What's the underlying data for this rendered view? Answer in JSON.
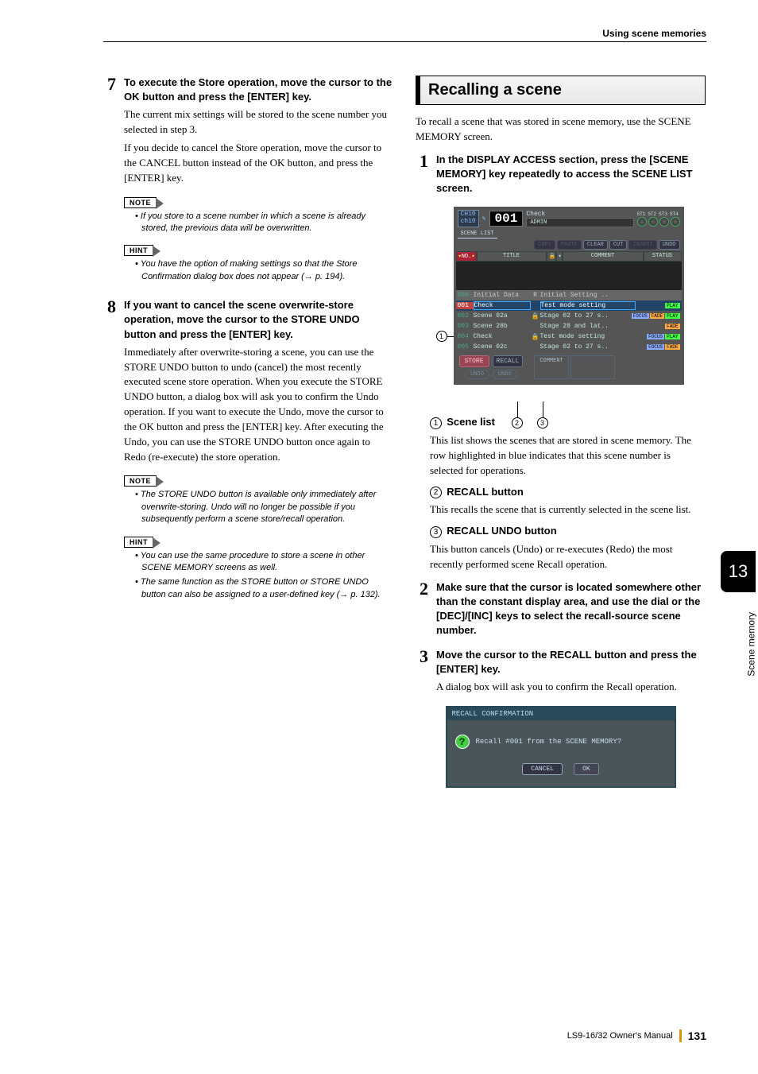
{
  "header": {
    "section": "Using scene memories"
  },
  "left": {
    "step7": {
      "num": "7",
      "title": "To execute the Store operation, move the cursor to the OK button and press the [ENTER] key.",
      "p1": "The current mix settings will be stored to the scene number you selected in step 3.",
      "p2": "If you decide to cancel the Store operation, move the cursor to the CANCEL button instead of the OK button, and press the [ENTER] key.",
      "note_tag": "NOTE",
      "note1": "If you store to a scene number in which a scene is already stored, the previous data will be overwritten.",
      "hint_tag": "HINT",
      "hint1": "You have the option of making settings so that the Store Confirmation dialog box does not appear (→ p. 194)."
    },
    "step8": {
      "num": "8",
      "title": "If you want to cancel the scene overwrite-store operation, move the cursor to the STORE UNDO button and press the [ENTER] key.",
      "p1": "Immediately after overwrite-storing a scene, you can use the STORE UNDO button to undo (cancel) the most recently executed scene store operation. When you execute the STORE UNDO button, a dialog box will ask you to confirm the Undo operation. If you want to execute the Undo, move the cursor to the OK button and press the [ENTER] key. After executing the Undo, you can use the STORE UNDO button once again to Redo (re-execute) the store operation.",
      "note_tag": "NOTE",
      "note1": "The STORE UNDO button is available only immediately after overwrite-storing. Undo will no longer be possible if you subsequently perform a scene store/recall operation.",
      "hint_tag": "HINT",
      "hint1": "You can use the same procedure to store a scene in other SCENE MEMORY screens as well.",
      "hint2": "The same function as the STORE button or STORE UNDO button can also be assigned to a user-defined key (→ p. 132)."
    }
  },
  "right": {
    "title": "Recalling a scene",
    "intro": "To recall a scene that was stored in scene memory, use the SCENE MEMORY screen.",
    "step1": {
      "num": "1",
      "title": "In the DISPLAY ACCESS section, press the [SCENE MEMORY] key repeatedly to access the SCENE LIST screen."
    },
    "scr": {
      "ch": "CH10",
      "chn": "ch10",
      "n": "001",
      "check": "Check",
      "admin": "ADMIN",
      "st": [
        "ST1",
        "ST2",
        "ST3",
        "ST4"
      ],
      "tab": "SCENE LIST",
      "btns": {
        "copy": "COPY",
        "paste": "PASTE",
        "clear": "CLEAR",
        "cut": "CUT",
        "insert": "INSERT",
        "undo": "UNDO"
      },
      "hdr": {
        "no": "NO.",
        "title": "TITLE",
        "cmt": "COMMENT",
        "status": "STATUS"
      },
      "rows": [
        {
          "n": "000",
          "t": "Initial Data",
          "l": "R",
          "c": "Initial Setting ..",
          "s": []
        },
        {
          "n": "001",
          "t": "Check",
          "l": "",
          "c": "Test mode setting",
          "s": [
            "PLAY"
          ],
          "sel": true
        },
        {
          "n": "002",
          "t": "Scene 02a",
          "l": "🔒",
          "c": "Stage 02 to 27 s..",
          "s": [
            "FOCUS",
            "FADE",
            "PLAY"
          ]
        },
        {
          "n": "003",
          "t": "Scene 28b",
          "l": "",
          "c": "Stage 28 and lat..",
          "s": [
            "FADE"
          ]
        },
        {
          "n": "004",
          "t": "Check",
          "l": "🔒",
          "c": "Test mode setting",
          "s": [
            "FOCUS",
            "PLAY"
          ]
        },
        {
          "n": "005",
          "t": "Scene 02c",
          "l": "",
          "c": "Stage 02 to 27 s..",
          "s": [
            "FOCUS",
            "FADE"
          ]
        }
      ],
      "store": "STORE",
      "recall": "RECALL",
      "undo2": "UNDO",
      "tb": {
        "comment": "COMMENT",
        "ts": "TIME STAMP"
      }
    },
    "item1": {
      "c": "1",
      "title": "Scene list",
      "body": "This list shows the scenes that are stored in scene memory. The row highlighted in blue indicates that this scene number is selected for operations."
    },
    "item2": {
      "c": "2",
      "title": "RECALL button",
      "body": "This recalls the scene that is currently selected in the scene list."
    },
    "item3": {
      "c": "3",
      "title": "RECALL UNDO button",
      "body": "This button cancels (Undo) or re-executes (Redo) the most recently performed scene Recall operation."
    },
    "step2": {
      "num": "2",
      "title": "Make sure that the cursor is located somewhere other than the constant display area, and use the dial or the [DEC]/[INC] keys to select the recall-source scene number."
    },
    "step3": {
      "num": "3",
      "title": "Move the cursor to the RECALL button and press the [ENTER] key.",
      "body": "A dialog box will ask you to confirm the Recall operation."
    },
    "dialog": {
      "title": "RECALL CONFIRMATION",
      "msg": "Recall #001 from the SCENE MEMORY?",
      "cancel": "CANCEL",
      "ok": "OK"
    }
  },
  "side": {
    "chapter": "13",
    "label": "Scene memory"
  },
  "footer": {
    "manual": "LS9-16/32  Owner's Manual",
    "page": "131"
  }
}
